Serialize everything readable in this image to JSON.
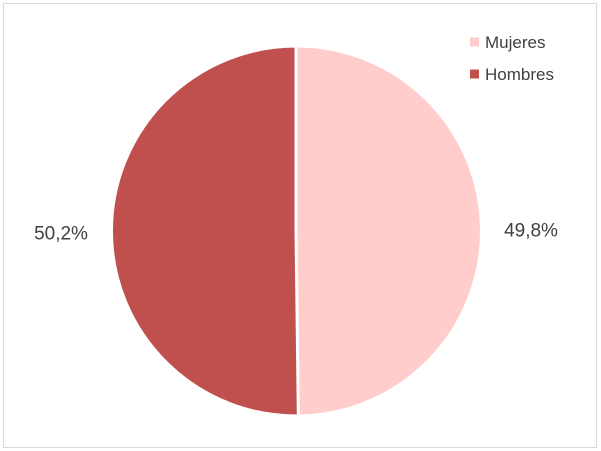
{
  "chart_data": {
    "type": "pie",
    "title": "",
    "categories": [
      "Mujeres",
      "Hombres"
    ],
    "values": [
      49.8,
      50.2
    ],
    "value_labels": [
      "49,8%",
      "50,2%"
    ],
    "colors": [
      "#ffcdcc",
      "#c0504d"
    ],
    "start_angle_deg": 0,
    "direction": "clockwise",
    "legend": {
      "position": "top-right",
      "items": [
        "Mujeres",
        "Hombres"
      ]
    }
  }
}
